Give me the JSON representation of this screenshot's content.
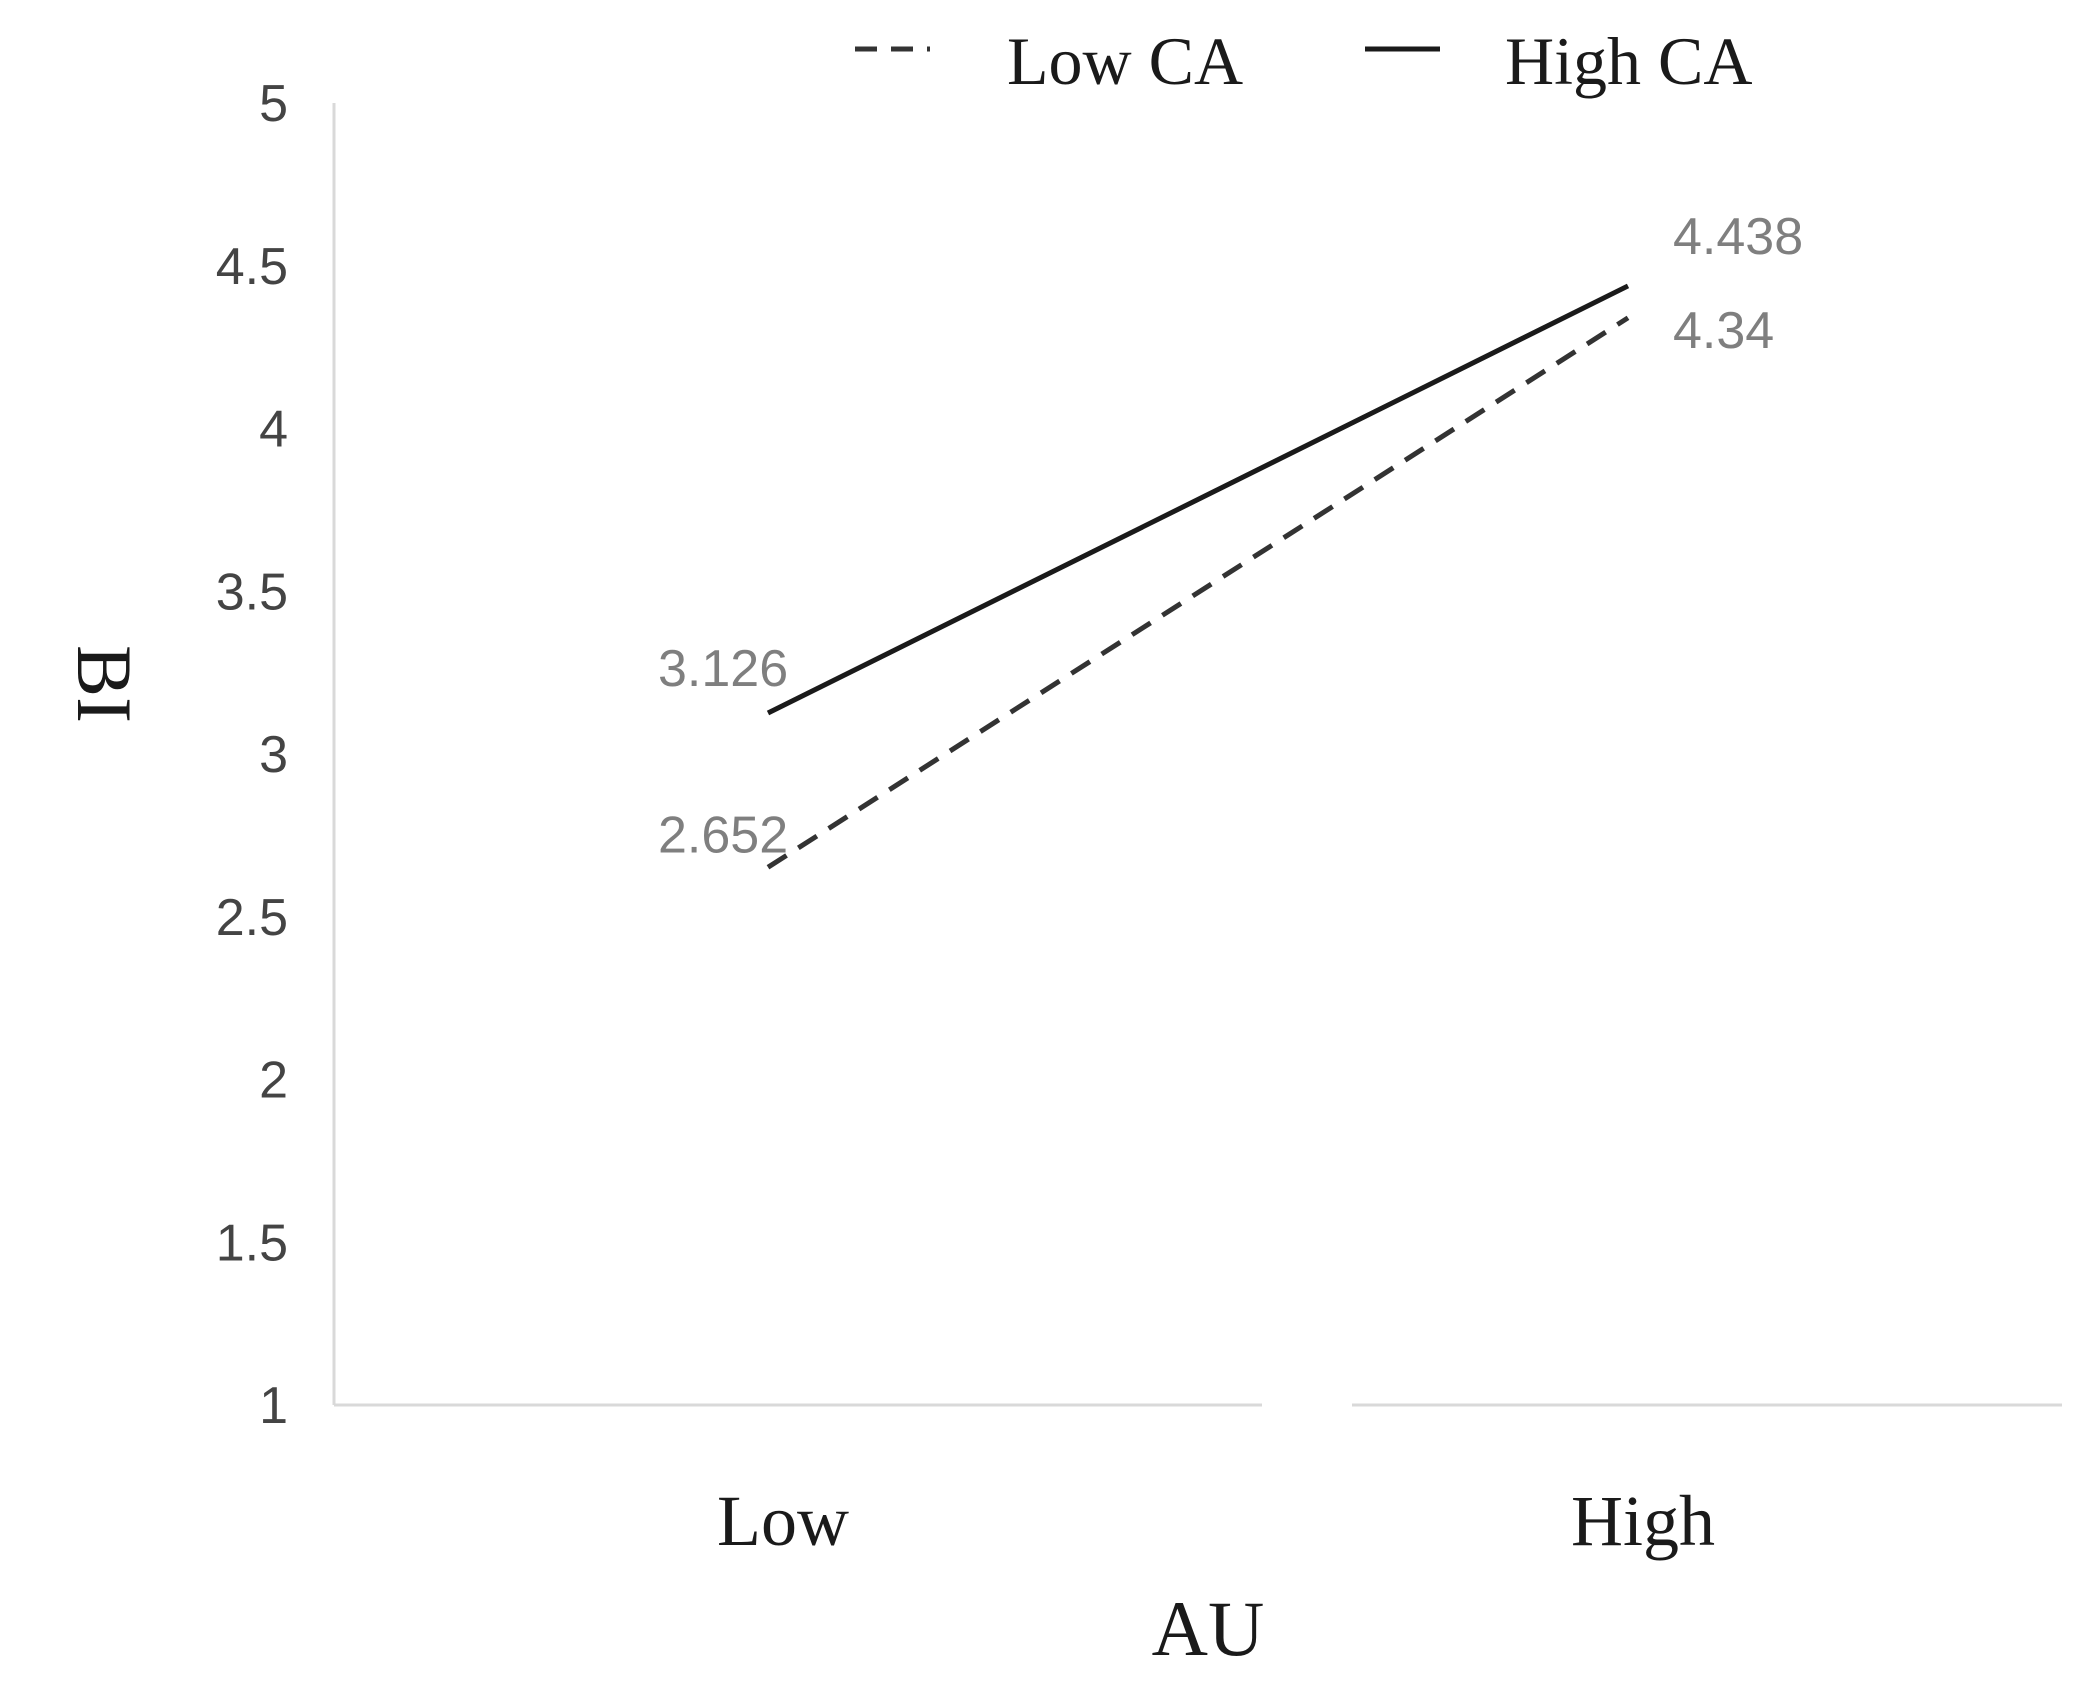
{
  "chart_data": {
    "type": "line",
    "categories": [
      "Low",
      "High"
    ],
    "series": [
      {
        "name": "Low CA",
        "values": [
          2.652,
          4.34
        ],
        "line_style": "dashed",
        "color": "#333333"
      },
      {
        "name": "High CA",
        "values": [
          3.126,
          4.438
        ],
        "line_style": "solid",
        "color": "#1a1a1a"
      }
    ],
    "data_labels": [
      [
        "2.652",
        "4.34"
      ],
      [
        "3.126",
        "4.438"
      ]
    ],
    "xlabel": "AU",
    "ylabel": "BI",
    "ylim": [
      1,
      5
    ],
    "yticks": [
      "1",
      "1.5",
      "2",
      "2.5",
      "3",
      "3.5",
      "4",
      "4.5",
      "5"
    ],
    "grid": false,
    "legend_position": "top"
  }
}
